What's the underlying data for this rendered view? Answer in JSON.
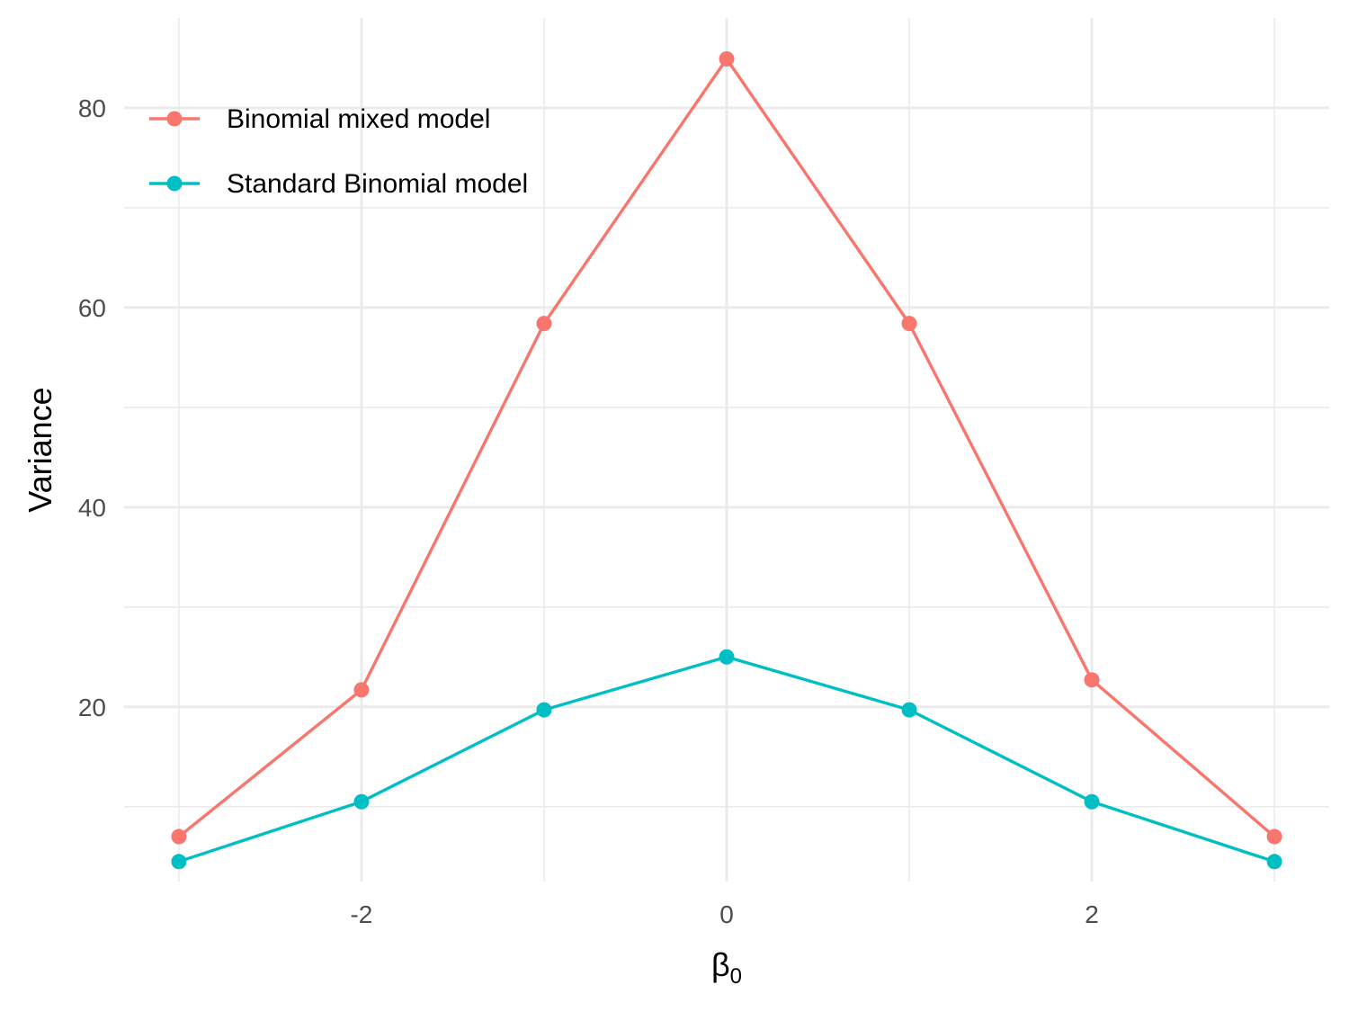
{
  "chart_data": {
    "type": "line",
    "title": "",
    "xlabel": "β",
    "xlabel_subscript": "0",
    "ylabel": "Variance",
    "x": [
      -3,
      -2,
      -1,
      0,
      1,
      2,
      3
    ],
    "xlim": [
      -3.3,
      3.3
    ],
    "ylim": [
      2.5,
      89
    ],
    "x_ticks": [
      -2,
      0,
      2
    ],
    "x_tick_labels": [
      "-2",
      "0",
      "2"
    ],
    "y_ticks": [
      20,
      40,
      60,
      80
    ],
    "y_tick_labels": [
      "20",
      "40",
      "60",
      "80"
    ],
    "grid": true,
    "legend_position": "top-left",
    "series": [
      {
        "name": "Binomial mixed model",
        "color": "#F8766D",
        "values": [
          7.0,
          21.7,
          58.4,
          84.9,
          58.4,
          22.7,
          7.0
        ]
      },
      {
        "name": "Standard Binomial model",
        "color": "#00BFC4",
        "values": [
          4.5,
          10.5,
          19.7,
          25.0,
          19.7,
          10.5,
          4.5
        ]
      }
    ]
  }
}
